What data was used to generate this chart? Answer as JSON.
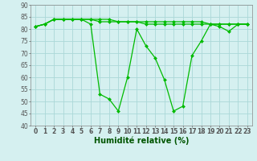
{
  "series": [
    {
      "values": [
        81,
        82,
        84,
        84,
        84,
        84,
        82,
        53,
        51,
        46,
        60,
        80,
        73,
        68,
        59,
        46,
        48,
        69,
        75,
        82,
        81,
        79,
        82,
        82
      ],
      "color": "#00bb00",
      "marker": "D",
      "markersize": 2.0,
      "linewidth": 0.9
    },
    {
      "values": [
        81,
        82,
        84,
        84,
        84,
        84,
        84,
        84,
        84,
        83,
        83,
        83,
        83,
        83,
        83,
        83,
        83,
        83,
        83,
        82,
        82,
        82,
        82,
        82
      ],
      "color": "#00bb00",
      "marker": "D",
      "markersize": 2.0,
      "linewidth": 0.9
    },
    {
      "values": [
        81,
        82,
        84,
        84,
        84,
        84,
        84,
        83,
        83,
        83,
        83,
        83,
        82,
        82,
        82,
        82,
        82,
        82,
        82,
        82,
        82,
        82,
        82,
        82
      ],
      "color": "#00bb00",
      "marker": "D",
      "markersize": 2.0,
      "linewidth": 0.9
    }
  ],
  "x_labels": [
    "0",
    "1",
    "2",
    "3",
    "4",
    "5",
    "6",
    "7",
    "8",
    "9",
    "10",
    "11",
    "12",
    "13",
    "14",
    "15",
    "16",
    "17",
    "18",
    "19",
    "20",
    "21",
    "22",
    "23"
  ],
  "xlabel": "Humidité relative (%)",
  "ylim": [
    40,
    90
  ],
  "ytick_labels": [
    "40",
    "45",
    "50",
    "55",
    "60",
    "65",
    "70",
    "75",
    "80",
    "85",
    "90"
  ],
  "background_color": "#d5f0f0",
  "grid_color": "#aad8d8",
  "xlabel_fontsize": 7,
  "tick_fontsize": 5.5
}
